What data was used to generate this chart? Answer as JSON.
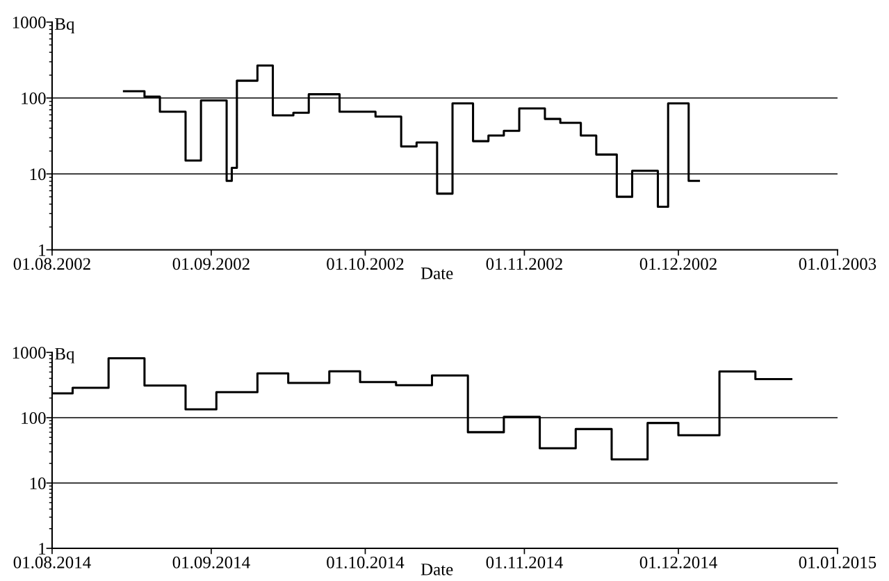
{
  "chart_data": [
    {
      "type": "step",
      "xlabel": "Date",
      "ylabel": "Bq",
      "log": "y",
      "ylim": [
        1,
        1000
      ],
      "yticks": [
        1,
        10,
        100,
        1000
      ],
      "xlim": [
        "2002-08-01",
        "2003-01-01"
      ],
      "xticks": [
        {
          "value": "2002-08-01",
          "label": "01.08.2002"
        },
        {
          "value": "2002-09-01",
          "label": "01.09.2002"
        },
        {
          "value": "2002-10-01",
          "label": "01.10.2002"
        },
        {
          "value": "2002-11-01",
          "label": "01.11.2002"
        },
        {
          "value": "2002-12-01",
          "label": "01.12.2002"
        },
        {
          "value": "2003-01-01",
          "label": "01.01.2003"
        }
      ],
      "ref_lines": [
        {
          "axis": "y",
          "value": 10,
          "color": "#000000"
        },
        {
          "axis": "y",
          "value": 100,
          "color": "#000000"
        }
      ],
      "series": [
        {
          "color": "#000000",
          "x": [
            "2002-08-15",
            "2002-08-19",
            "2002-08-22",
            "2002-08-27",
            "2002-08-30",
            "2002-09-04",
            "2002-09-05",
            "2002-09-06",
            "2002-09-10",
            "2002-09-13",
            "2002-09-17",
            "2002-09-20",
            "2002-09-26",
            "2002-10-03",
            "2002-10-08",
            "2002-10-11",
            "2002-10-15",
            "2002-10-18",
            "2002-10-22",
            "2002-10-25",
            "2002-10-28",
            "2002-10-31",
            "2002-11-05",
            "2002-11-08",
            "2002-11-12",
            "2002-11-15",
            "2002-11-19",
            "2002-11-22",
            "2002-11-27",
            "2002-11-29",
            "2002-12-03",
            "2002-12-05"
          ],
          "values": [
            123,
            104,
            66,
            15,
            93,
            8.1,
            12,
            169,
            268,
            59,
            64,
            112,
            66,
            57,
            23,
            26,
            5.5,
            85,
            27,
            32,
            37,
            73,
            53,
            47,
            32,
            18,
            5,
            11,
            3.7,
            85,
            8.1,
            8.1
          ]
        }
      ]
    },
    {
      "type": "step",
      "xlabel": "Date",
      "ylabel": "Bq",
      "log": "y",
      "ylim": [
        1,
        1000
      ],
      "yticks": [
        1,
        10,
        100,
        1000
      ],
      "xlim": [
        "2014-08-01",
        "2015-01-01"
      ],
      "xticks": [
        {
          "value": "2014-08-01",
          "label": "01.08.2014"
        },
        {
          "value": "2014-09-01",
          "label": "01.09.2014"
        },
        {
          "value": "2014-10-01",
          "label": "01.10.2014"
        },
        {
          "value": "2014-11-01",
          "label": "01.11.2014"
        },
        {
          "value": "2014-12-01",
          "label": "01.12.2014"
        },
        {
          "value": "2015-01-01",
          "label": "01.01.2015"
        }
      ],
      "ref_lines": [
        {
          "axis": "y",
          "value": 10,
          "color": "#000000"
        },
        {
          "axis": "y",
          "value": 100,
          "color": "#000000"
        }
      ],
      "series": [
        {
          "color": "#000000",
          "x": [
            "2014-08-01",
            "2014-08-05",
            "2014-08-12",
            "2014-08-19",
            "2014-08-27",
            "2014-09-02",
            "2014-09-10",
            "2014-09-16",
            "2014-09-24",
            "2014-09-30",
            "2014-10-07",
            "2014-10-14",
            "2014-10-21",
            "2014-10-28",
            "2014-11-04",
            "2014-11-11",
            "2014-11-18",
            "2014-11-25",
            "2014-12-01",
            "2014-12-09",
            "2014-12-16",
            "2014-12-23"
          ],
          "values": [
            236,
            287,
            813,
            310,
            134,
            246,
            478,
            340,
            513,
            351,
            314,
            444,
            60,
            103,
            34,
            67,
            23,
            83,
            54,
            510,
            390,
            390
          ]
        }
      ]
    }
  ]
}
